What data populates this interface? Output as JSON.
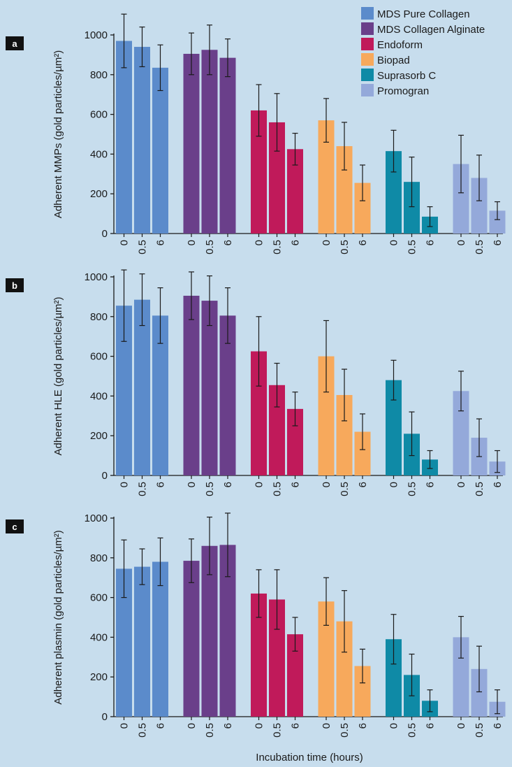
{
  "figure": {
    "xlabel": "Incubation time (hours)",
    "legend": [
      {
        "name": "MDS Pure Collagen",
        "color": "#5b8bcb"
      },
      {
        "name": "MDS Collagen Alginate",
        "color": "#6a3f8a"
      },
      {
        "name": "Endoform",
        "color": "#c01a5a"
      },
      {
        "name": "Biopad",
        "color": "#f7a95c"
      },
      {
        "name": "Suprasorb C",
        "color": "#0f8aa6"
      },
      {
        "name": "Promogran",
        "color": "#94a9da"
      }
    ]
  },
  "chart_data": [
    {
      "type": "bar",
      "panel_label": "a",
      "ylabel": "Adherent MMPs (gold particles/µm²)",
      "ylim": [
        0,
        1000
      ],
      "yticks": [
        0,
        200,
        400,
        600,
        800,
        1000
      ],
      "categories": [
        "0",
        "0.5",
        "6"
      ],
      "series": [
        {
          "name": "MDS Pure Collagen",
          "values": [
            970,
            940,
            835
          ],
          "errors": [
            135,
            100,
            115
          ]
        },
        {
          "name": "MDS Collagen Alginate",
          "values": [
            905,
            925,
            885
          ],
          "errors": [
            105,
            125,
            95
          ]
        },
        {
          "name": "Endoform",
          "values": [
            620,
            560,
            425
          ],
          "errors": [
            130,
            145,
            80
          ]
        },
        {
          "name": "Biopad",
          "values": [
            570,
            440,
            255
          ],
          "errors": [
            110,
            120,
            90
          ]
        },
        {
          "name": "Suprasorb C",
          "values": [
            415,
            260,
            85
          ],
          "errors": [
            105,
            125,
            50
          ]
        },
        {
          "name": "Promogran",
          "values": [
            350,
            280,
            115
          ],
          "errors": [
            145,
            115,
            45
          ]
        }
      ]
    },
    {
      "type": "bar",
      "panel_label": "b",
      "ylabel": "Adherent HLE (gold particles/µm²)",
      "ylim": [
        0,
        1000
      ],
      "yticks": [
        0,
        200,
        400,
        600,
        800,
        1000
      ],
      "categories": [
        "0",
        "0.5",
        "6"
      ],
      "series": [
        {
          "name": "MDS Pure Collagen",
          "values": [
            855,
            885,
            805
          ],
          "errors": [
            180,
            130,
            140
          ]
        },
        {
          "name": "MDS Collagen Alginate",
          "values": [
            905,
            880,
            805
          ],
          "errors": [
            120,
            125,
            140
          ]
        },
        {
          "name": "Endoform",
          "values": [
            625,
            455,
            335
          ],
          "errors": [
            175,
            110,
            85
          ]
        },
        {
          "name": "Biopad",
          "values": [
            600,
            405,
            220
          ],
          "errors": [
            180,
            130,
            90
          ]
        },
        {
          "name": "Suprasorb C",
          "values": [
            480,
            210,
            80
          ],
          "errors": [
            100,
            110,
            45
          ]
        },
        {
          "name": "Promogran",
          "values": [
            425,
            190,
            70
          ],
          "errors": [
            100,
            95,
            55
          ]
        }
      ]
    },
    {
      "type": "bar",
      "panel_label": "c",
      "ylabel": "Adherent plasmin (gold particles/µm²)",
      "ylim": [
        0,
        1000
      ],
      "yticks": [
        0,
        200,
        400,
        600,
        800,
        1000
      ],
      "categories": [
        "0",
        "0.5",
        "6"
      ],
      "series": [
        {
          "name": "MDS Pure Collagen",
          "values": [
            745,
            755,
            780
          ],
          "errors": [
            145,
            90,
            120
          ]
        },
        {
          "name": "MDS Collagen Alginate",
          "values": [
            785,
            860,
            865
          ],
          "errors": [
            110,
            145,
            160
          ]
        },
        {
          "name": "Endoform",
          "values": [
            620,
            590,
            415
          ],
          "errors": [
            120,
            150,
            85
          ]
        },
        {
          "name": "Biopad",
          "values": [
            580,
            480,
            255
          ],
          "errors": [
            120,
            155,
            85
          ]
        },
        {
          "name": "Suprasorb C",
          "values": [
            390,
            210,
            80
          ],
          "errors": [
            125,
            105,
            55
          ]
        },
        {
          "name": "Promogran",
          "values": [
            400,
            240,
            75
          ],
          "errors": [
            105,
            115,
            60
          ]
        }
      ]
    }
  ]
}
